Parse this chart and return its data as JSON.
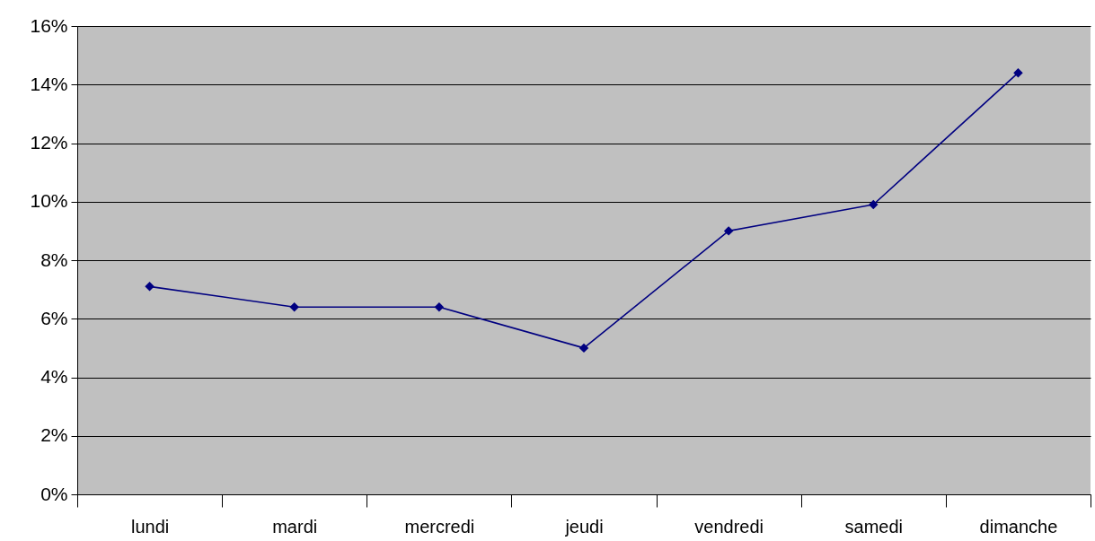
{
  "chart_data": {
    "type": "line",
    "categories": [
      "lundi",
      "mardi",
      "mercredi",
      "jeudi",
      "vendredi",
      "samedi",
      "dimanche"
    ],
    "series": [
      {
        "color": "#000080",
        "values": [
          7.1,
          6.4,
          6.4,
          5.0,
          9.0,
          9.9,
          14.4
        ]
      }
    ],
    "ylim": [
      0,
      16
    ],
    "yticks": [
      {
        "value": 0,
        "label": "0%"
      },
      {
        "value": 2,
        "label": "2%"
      },
      {
        "value": 4,
        "label": "4%"
      },
      {
        "value": 6,
        "label": "6%"
      },
      {
        "value": 8,
        "label": "8%"
      },
      {
        "value": 10,
        "label": "10%"
      },
      {
        "value": 12,
        "label": "12%"
      },
      {
        "value": 14,
        "label": "14%"
      },
      {
        "value": 16,
        "label": "16%"
      }
    ],
    "grid": "y",
    "marker": "diamond",
    "line_style": "solid"
  }
}
